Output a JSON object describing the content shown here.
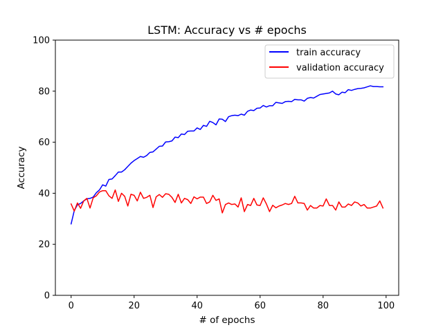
{
  "chart_data": {
    "type": "line",
    "title": "LSTM: Accuracy vs # epochs",
    "xlabel": "# of epochs",
    "ylabel": "Accuracy",
    "xlim": [
      -5,
      104
    ],
    "ylim": [
      0,
      100
    ],
    "xticks": [
      0,
      20,
      40,
      60,
      80,
      100
    ],
    "yticks": [
      0,
      20,
      40,
      60,
      80,
      100
    ],
    "grid": false,
    "legend_position": "top-right",
    "x": [
      0,
      1,
      2,
      3,
      4,
      5,
      6,
      7,
      8,
      9,
      10,
      11,
      12,
      13,
      14,
      15,
      16,
      17,
      18,
      19,
      20,
      21,
      22,
      23,
      24,
      25,
      26,
      27,
      28,
      29,
      30,
      31,
      32,
      33,
      34,
      35,
      36,
      37,
      38,
      39,
      40,
      41,
      42,
      43,
      44,
      45,
      46,
      47,
      48,
      49,
      50,
      51,
      52,
      53,
      54,
      55,
      56,
      57,
      58,
      59,
      60,
      61,
      62,
      63,
      64,
      65,
      66,
      67,
      68,
      69,
      70,
      71,
      72,
      73,
      74,
      75,
      76,
      77,
      78,
      79,
      80,
      81,
      82,
      83,
      84,
      85,
      86,
      87,
      88,
      89,
      90,
      91,
      92,
      93,
      94,
      95,
      96,
      97,
      98,
      99
    ],
    "series": [
      {
        "name": "train accuracy",
        "color": "#0000ff",
        "values": [
          28.0,
          33.2,
          35.5,
          36.0,
          37.0,
          37.8,
          38.0,
          38.5,
          40.2,
          41.3,
          43.3,
          42.8,
          45.4,
          45.6,
          46.9,
          48.3,
          48.3,
          49.2,
          50.5,
          51.8,
          52.8,
          53.6,
          54.4,
          54.1,
          54.8,
          56.0,
          56.2,
          57.3,
          58.4,
          58.5,
          60.1,
          60.2,
          60.5,
          62.0,
          61.8,
          63.2,
          63.0,
          64.3,
          64.4,
          64.4,
          65.6,
          65.0,
          66.6,
          66.2,
          68.2,
          67.7,
          66.8,
          69.1,
          69.0,
          68.1,
          70.0,
          70.4,
          70.6,
          70.4,
          71.0,
          70.6,
          72.1,
          72.6,
          72.4,
          73.3,
          73.4,
          74.4,
          73.8,
          74.3,
          74.3,
          75.6,
          75.4,
          75.2,
          75.9,
          76.0,
          75.9,
          76.8,
          76.6,
          76.6,
          76.1,
          77.2,
          77.5,
          77.3,
          78.0,
          78.7,
          78.9,
          79.1,
          79.3,
          80.0,
          78.9,
          78.6,
          79.6,
          79.4,
          80.6,
          80.3,
          80.7,
          81.0,
          81.1,
          81.3,
          81.7,
          82.1,
          81.8,
          81.8,
          81.7,
          81.7
        ]
      },
      {
        "name": "validation accuracy",
        "color": "#ff0000",
        "values": [
          35.8,
          33.0,
          36.2,
          34.1,
          37.0,
          38.0,
          34.2,
          38.2,
          39.0,
          40.5,
          41.0,
          41.0,
          39.0,
          38.0,
          41.3,
          36.8,
          40.0,
          38.8,
          35.0,
          39.6,
          39.2,
          37.0,
          40.4,
          38.0,
          38.4,
          39.2,
          34.4,
          38.6,
          39.5,
          38.4,
          39.8,
          39.6,
          38.4,
          36.4,
          39.6,
          36.2,
          38.0,
          37.5,
          36.0,
          38.6,
          37.8,
          38.5,
          38.5,
          36.0,
          36.6,
          39.2,
          37.2,
          37.8,
          32.3,
          35.6,
          36.2,
          35.6,
          35.8,
          34.6,
          38.2,
          32.8,
          35.6,
          35.2,
          38.0,
          35.4,
          35.2,
          38.2,
          35.8,
          32.8,
          35.3,
          34.3,
          35.0,
          35.4,
          36.0,
          35.6,
          36.0,
          38.8,
          36.2,
          36.2,
          36.0,
          33.4,
          35.2,
          34.2,
          34.2,
          35.2,
          35.0,
          37.8,
          35.2,
          35.2,
          33.4,
          36.6,
          34.6,
          34.6,
          35.8,
          35.2,
          36.6,
          36.2,
          35.0,
          35.6,
          34.2,
          34.2,
          34.6,
          35.0,
          37.0,
          34.2
        ]
      }
    ]
  }
}
